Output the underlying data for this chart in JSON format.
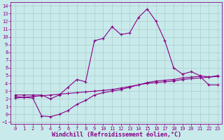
{
  "xlabel": "Windchill (Refroidissement éolien,°C)",
  "bg_color": "#c8eaea",
  "line_color": "#880088",
  "grid_color": "#aacccc",
  "xlim": [
    -0.5,
    23.5
  ],
  "ylim": [
    -1.2,
    14.5
  ],
  "xticks": [
    0,
    1,
    2,
    3,
    4,
    5,
    6,
    7,
    8,
    9,
    10,
    11,
    12,
    13,
    14,
    15,
    16,
    17,
    18,
    19,
    20,
    21,
    22,
    23
  ],
  "yticks": [
    -1,
    0,
    1,
    2,
    3,
    4,
    5,
    6,
    7,
    8,
    9,
    10,
    11,
    12,
    13,
    14
  ],
  "line1_x": [
    0,
    1,
    2,
    3,
    4,
    5,
    6,
    7,
    8,
    9,
    10,
    11,
    12,
    13,
    14,
    15,
    16,
    17,
    18,
    19,
    20,
    21,
    22,
    23
  ],
  "line1_y": [
    2.5,
    2.5,
    2.5,
    2.5,
    2.0,
    2.5,
    3.5,
    4.5,
    4.2,
    9.5,
    9.8,
    11.3,
    10.3,
    10.5,
    12.5,
    13.6,
    12.0,
    9.5,
    6.0,
    5.2,
    5.5,
    5.0,
    4.8,
    5.0
  ],
  "line2_x": [
    0,
    1,
    2,
    3,
    4,
    5,
    6,
    7,
    8,
    9,
    10,
    11,
    12,
    13,
    14,
    15,
    16,
    17,
    18,
    19,
    20,
    21,
    22,
    23
  ],
  "line2_y": [
    2.1,
    2.2,
    2.3,
    2.4,
    2.5,
    2.6,
    2.7,
    2.8,
    2.9,
    3.0,
    3.1,
    3.2,
    3.4,
    3.6,
    3.8,
    4.0,
    4.1,
    4.2,
    4.3,
    4.5,
    4.6,
    4.7,
    4.8,
    4.9
  ],
  "line3_x": [
    0,
    1,
    2,
    3,
    4,
    5,
    6,
    7,
    8,
    9,
    10,
    11,
    12,
    13,
    14,
    15,
    16,
    17,
    18,
    19,
    20,
    21,
    22,
    23
  ],
  "line3_y": [
    2.3,
    2.2,
    2.1,
    -0.2,
    -0.3,
    0.0,
    0.5,
    1.3,
    1.8,
    2.5,
    2.8,
    3.0,
    3.2,
    3.5,
    3.8,
    4.1,
    4.3,
    4.4,
    4.5,
    4.7,
    4.8,
    4.9,
    3.8,
    3.8
  ],
  "tick_fontsize": 5,
  "xlabel_fontsize": 6,
  "marker": "+"
}
